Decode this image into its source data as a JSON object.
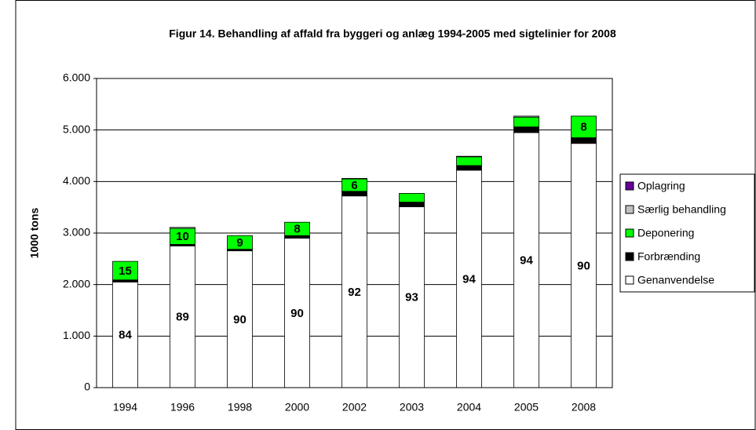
{
  "chart_data": {
    "type": "stacked_bar",
    "title": "Figur 14. Behandling af affald fra byggeri og anlæg 1994-2005 med sigtelinier for 2008",
    "y_label": "1000 tons",
    "categories": [
      "1994",
      "1996",
      "1998",
      "2000",
      "2002",
      "2003",
      "2004",
      "2005",
      "2008"
    ],
    "series": [
      {
        "name": "Genanvendelse",
        "color": "#ffffff",
        "values": [
          2050,
          2750,
          2655,
          2900,
          3720,
          3510,
          4220,
          4950,
          4740
        ],
        "shares": [
          84,
          89,
          90,
          90,
          92,
          93,
          94,
          94,
          90
        ]
      },
      {
        "name": "Forbrænding",
        "color": "#000000",
        "values": [
          40,
          30,
          30,
          50,
          90,
          90,
          90,
          110,
          110
        ],
        "shares": [
          null,
          null,
          null,
          null,
          null,
          null,
          null,
          null,
          null
        ]
      },
      {
        "name": "Deponering",
        "color": "#00ff00",
        "values": [
          360,
          310,
          265,
          260,
          240,
          170,
          170,
          190,
          420
        ],
        "shares": [
          15,
          10,
          9,
          8,
          6,
          null,
          null,
          null,
          8
        ]
      },
      {
        "name": "Særlig behandling",
        "color": "#c0c0c0",
        "values": [
          0,
          20,
          0,
          0,
          10,
          0,
          10,
          20,
          0
        ],
        "shares": [
          null,
          null,
          null,
          null,
          null,
          null,
          null,
          null,
          null
        ]
      },
      {
        "name": "Oplagring",
        "color": "#660099",
        "values": [
          0,
          0,
          0,
          0,
          0,
          0,
          0,
          0,
          0
        ],
        "shares": [
          null,
          null,
          null,
          null,
          null,
          null,
          null,
          null,
          null
        ]
      }
    ],
    "ylim": [
      0,
      6000
    ],
    "yticks": [
      0,
      {
        "value": 1000,
        "label": "1.000"
      },
      {
        "value": 2000,
        "label": "2.000"
      },
      {
        "value": 3000,
        "label": "3.000"
      },
      {
        "value": 4000,
        "label": "4.000"
      },
      {
        "value": 5000,
        "label": "5.000"
      },
      {
        "value": 6000,
        "label": "6.000"
      }
    ],
    "grid": true,
    "legend": "right"
  }
}
